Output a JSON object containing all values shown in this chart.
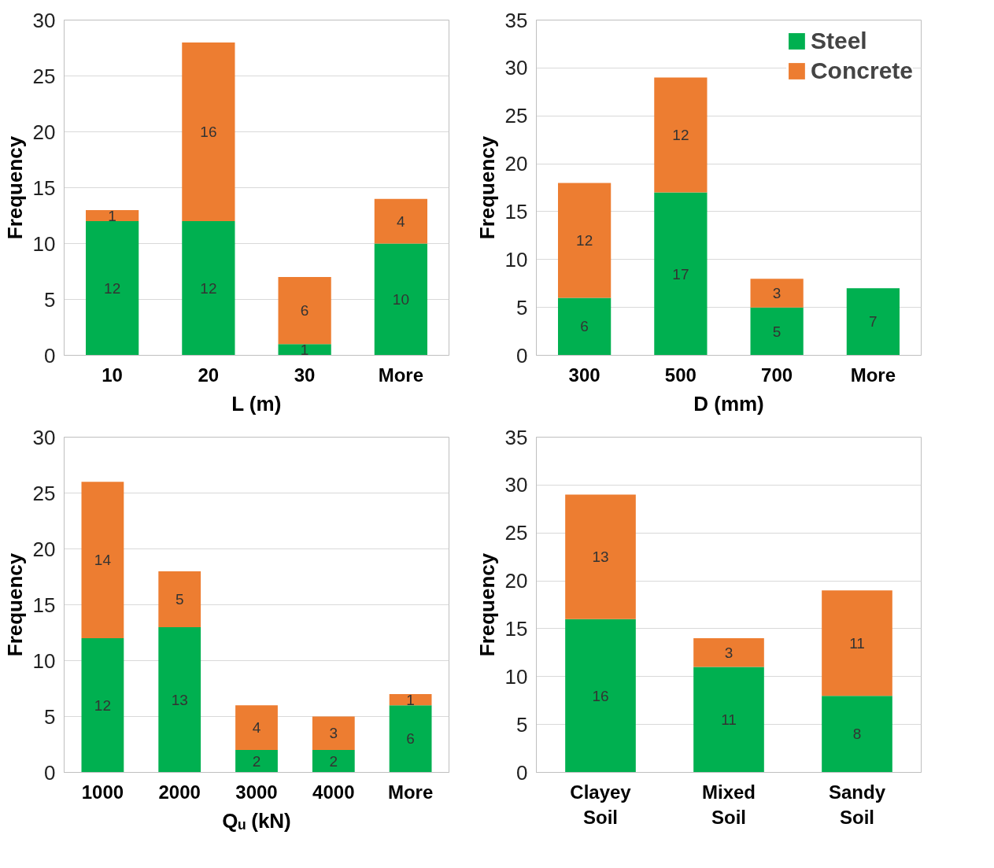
{
  "chart_data": [
    {
      "type": "bar",
      "stacked": true,
      "xlabel": "L (m)",
      "ylabel": "Frequency",
      "categories": [
        "10",
        "20",
        "30",
        "More"
      ],
      "ylim": [
        0,
        30
      ],
      "yticks": [
        0,
        5,
        10,
        15,
        20,
        25,
        30
      ],
      "grid": "y",
      "data_labels": true,
      "legend": false,
      "series": [
        {
          "color": "#00b050",
          "values": [
            12,
            12,
            1,
            10
          ]
        },
        {
          "color": "#ed7d31",
          "values": [
            1,
            16,
            6,
            4
          ]
        }
      ]
    },
    {
      "type": "bar",
      "stacked": true,
      "xlabel": "D (mm)",
      "ylabel": "Frequency",
      "categories": [
        "300",
        "500",
        "700",
        "More"
      ],
      "ylim": [
        0,
        35
      ],
      "yticks": [
        0,
        5,
        10,
        15,
        20,
        25,
        30,
        35
      ],
      "grid": "y",
      "data_labels": true,
      "legend": "top right",
      "series": [
        {
          "name": "Steel",
          "color": "#00b050",
          "values": [
            6,
            17,
            5,
            7
          ]
        },
        {
          "name": "Concrete",
          "color": "#ed7d31",
          "values": [
            12,
            12,
            3,
            null
          ]
        }
      ]
    },
    {
      "type": "bar",
      "stacked": true,
      "xlabel": "Qᵤ (kN)",
      "ylabel": "Frequency",
      "categories": [
        "1000",
        "2000",
        "3000",
        "4000",
        "More"
      ],
      "ylim": [
        0,
        30
      ],
      "yticks": [
        0,
        5,
        10,
        15,
        20,
        25,
        30
      ],
      "grid": "y",
      "data_labels": true,
      "legend": false,
      "series": [
        {
          "color": "#00b050",
          "values": [
            12,
            13,
            2,
            2,
            6
          ]
        },
        {
          "color": "#ed7d31",
          "values": [
            14,
            5,
            4,
            3,
            1
          ]
        }
      ]
    },
    {
      "type": "bar",
      "stacked": true,
      "ylabel": "Frequency",
      "categories": [
        "Clayey Soil",
        "Mixed Soil",
        "Sandy Soil"
      ],
      "ylim": [
        0,
        35
      ],
      "yticks": [
        0,
        5,
        10,
        15,
        20,
        25,
        30,
        35
      ],
      "grid": "y",
      "data_labels": true,
      "legend": false,
      "series": [
        {
          "color": "#00b050",
          "values": [
            16,
            11,
            8
          ]
        },
        {
          "color": "#ed7d31",
          "values": [
            13,
            3,
            11
          ]
        }
      ]
    }
  ]
}
